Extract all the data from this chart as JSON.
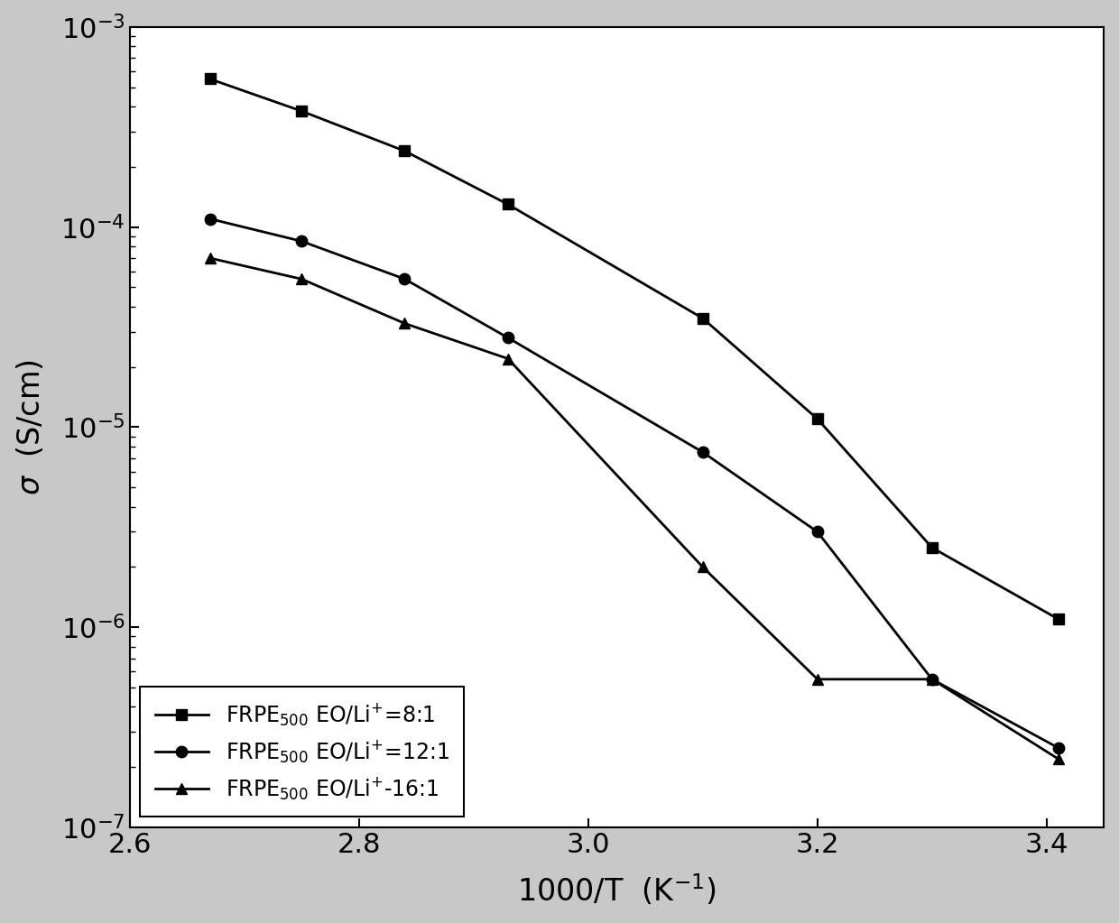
{
  "series": [
    {
      "label": "FRPE$_{500}$ EO/Li$^{+}$=8:1",
      "marker": "s",
      "x": [
        2.67,
        2.75,
        2.84,
        2.93,
        3.1,
        3.2,
        3.3,
        3.41
      ],
      "y": [
        0.00055,
        0.00038,
        0.00024,
        0.00013,
        3.5e-05,
        1.1e-05,
        2.5e-06,
        1.1e-06
      ]
    },
    {
      "label": "FRPE$_{500}$ EO/Li$^{+}$=12:1",
      "marker": "o",
      "x": [
        2.67,
        2.75,
        2.84,
        2.93,
        3.1,
        3.2,
        3.3,
        3.41
      ],
      "y": [
        0.00011,
        8.5e-05,
        5.5e-05,
        2.8e-05,
        7.5e-06,
        3e-06,
        5.5e-07,
        2.5e-07
      ]
    },
    {
      "label": "FRPE$_{500}$ EO/Li$^{+}$-16:1",
      "marker": "^",
      "x": [
        2.67,
        2.75,
        2.84,
        2.93,
        3.1,
        3.2,
        3.3,
        3.41
      ],
      "y": [
        7e-05,
        5.5e-05,
        3.3e-05,
        2.2e-05,
        2e-06,
        5.5e-07,
        5.5e-07,
        2.2e-07
      ]
    }
  ],
  "xlabel": "1000/T  (K$^{-1}$)",
  "ylabel": "$\\sigma$  (S/cm)",
  "xlim": [
    2.6,
    3.45
  ],
  "ylim": [
    1e-07,
    0.001
  ],
  "color": "#000000",
  "linewidth": 2.0,
  "markersize": 9,
  "legend_loc": "lower left",
  "outer_bg": "#c8c8c8",
  "inner_bg": "#ffffff",
  "grid": false,
  "xticks": [
    2.6,
    2.8,
    3.0,
    3.2,
    3.4
  ],
  "xtick_labels": [
    "2.6",
    "2.8",
    "3.0",
    "3.2",
    "3.4"
  ],
  "figsize": [
    12.4,
    10.23
  ],
  "dpi": 100
}
